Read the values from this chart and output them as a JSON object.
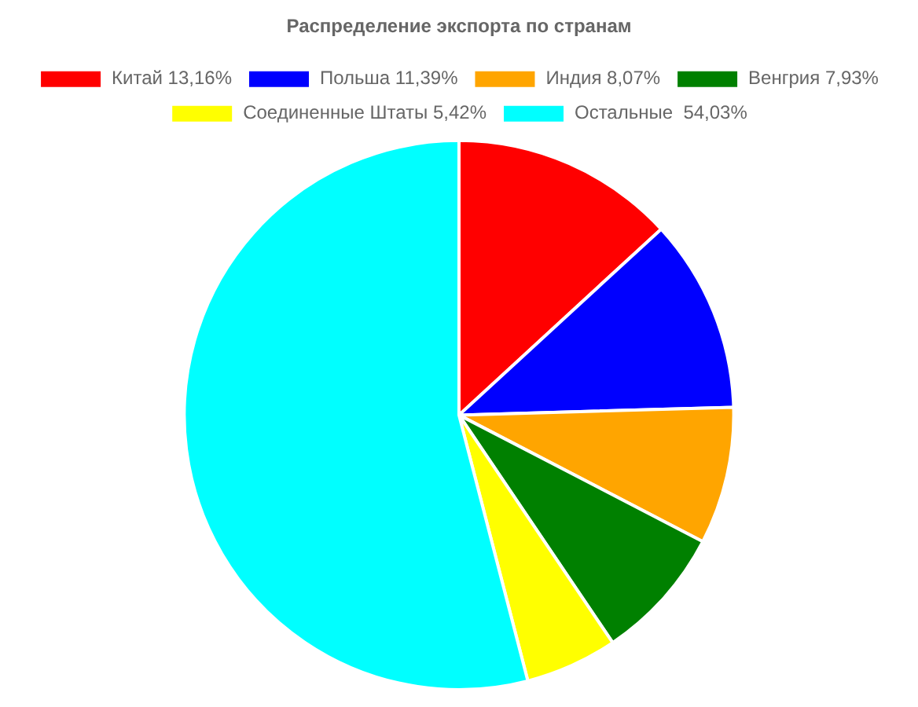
{
  "chart_data": {
    "type": "pie",
    "title": "Распределение экспорта по странам",
    "categories": [
      "Китай 13,16%",
      "Польша 11,39%",
      "Индия 8,07%",
      "Венгрия 7,93%",
      "Соединенные Штаты 5,42%",
      "Остальные  54,03%"
    ],
    "values": [
      13.16,
      11.39,
      8.07,
      7.93,
      5.42,
      54.03
    ],
    "colors": [
      "#ff0000",
      "#0000ff",
      "#ffa500",
      "#008000",
      "#ffff00",
      "#00ffff"
    ],
    "legend": "top"
  }
}
